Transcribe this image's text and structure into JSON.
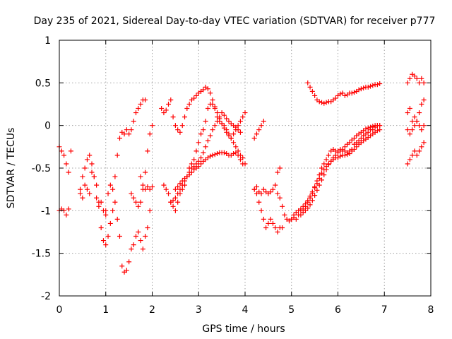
{
  "chart_data": {
    "type": "scatter",
    "title": "Day 235 of 2021, Sidereal Day-to-day VTEC variation (SDTVAR) for receiver p777",
    "xlabel": "GPS time / hours",
    "ylabel": "SDTVAR / TECUs",
    "xlim": [
      0,
      8
    ],
    "ylim": [
      -2,
      1
    ],
    "xticks": [
      0,
      1,
      2,
      3,
      4,
      5,
      6,
      7,
      8
    ],
    "xtick_labels": [
      "0",
      "1",
      "2",
      "3",
      "4",
      "5",
      "6",
      "7",
      "8"
    ],
    "yticks": [
      -2,
      -1.5,
      -1,
      -0.5,
      0,
      0.5,
      1
    ],
    "ytick_labels": [
      "-2",
      "-1.5",
      "-1",
      "-0.5",
      "0",
      "0.5",
      "1"
    ],
    "grid": true,
    "marker": "+",
    "color": "#ff0000",
    "series": [
      {
        "name": "s1",
        "x": [
          0.0,
          0.05,
          0.1,
          0.15,
          0.2,
          0.25
        ],
        "y": [
          -0.25,
          -0.3,
          -0.35,
          -0.45,
          -0.55,
          -0.3
        ]
      },
      {
        "name": "s2",
        "x": [
          0.0,
          0.05,
          0.1,
          0.15,
          0.2
        ],
        "y": [
          -1.0,
          -0.98,
          -1.0,
          -1.05,
          -0.98
        ]
      },
      {
        "name": "s3",
        "x": [
          0.45,
          0.5,
          0.55,
          0.6,
          0.65,
          0.7,
          0.75,
          0.8,
          0.85,
          0.9,
          0.95,
          1.0,
          1.05,
          1.1,
          1.15,
          1.2,
          1.25,
          1.3,
          1.35,
          1.4,
          1.45,
          1.5,
          1.55,
          1.6,
          1.65,
          1.7,
          1.75,
          1.8,
          1.85
        ],
        "y": [
          -0.75,
          -0.6,
          -0.5,
          -0.4,
          -0.35,
          -0.45,
          -0.6,
          -0.7,
          -0.9,
          -1.2,
          -1.35,
          -1.4,
          -1.3,
          -1.15,
          -1.0,
          -0.6,
          -0.35,
          -0.15,
          -0.08,
          -0.1,
          -0.05,
          -0.1,
          -0.05,
          0.05,
          0.15,
          0.2,
          0.25,
          0.3,
          0.3
        ]
      },
      {
        "name": "s4",
        "x": [
          0.45,
          0.5,
          0.55,
          0.6,
          0.65,
          0.7,
          0.75,
          0.8,
          0.85,
          0.9,
          0.95,
          1.0
        ],
        "y": [
          -0.8,
          -0.85,
          -0.7,
          -0.75,
          -0.8,
          -0.55,
          -0.6,
          -0.85,
          -0.95,
          -0.9,
          -1.0,
          -1.05
        ]
      },
      {
        "name": "s5",
        "x": [
          1.0,
          1.05,
          1.1,
          1.15,
          1.2,
          1.25,
          1.3,
          1.35,
          1.4,
          1.45,
          1.5,
          1.55,
          1.6,
          1.65,
          1.7,
          1.75,
          1.8,
          1.85,
          1.9,
          1.95
        ],
        "y": [
          -1.0,
          -0.8,
          -0.7,
          -0.75,
          -0.9,
          -1.1,
          -1.3,
          -1.65,
          -1.72,
          -1.7,
          -1.6,
          -1.45,
          -1.4,
          -1.3,
          -1.25,
          -1.35,
          -1.45,
          -1.3,
          -1.2,
          -1.0
        ]
      },
      {
        "name": "s6",
        "x": [
          1.55,
          1.6,
          1.65,
          1.7,
          1.75,
          1.8,
          1.85,
          1.9,
          1.95,
          2.0
        ],
        "y": [
          -0.8,
          -0.85,
          -0.9,
          -0.95,
          -0.9,
          -0.75,
          -0.55,
          -0.3,
          -0.1,
          0.0
        ]
      },
      {
        "name": "s7",
        "x": [
          1.75,
          1.8,
          1.85,
          1.9,
          1.95,
          2.0
        ],
        "y": [
          -0.6,
          -0.7,
          -0.75,
          -0.72,
          -0.75,
          -0.72
        ]
      },
      {
        "name": "s8",
        "x": [
          2.2,
          2.25,
          2.3,
          2.35,
          2.4,
          2.45,
          2.5,
          2.55,
          2.6,
          2.65,
          2.7,
          2.75,
          2.8,
          2.85,
          2.9,
          2.95,
          3.0,
          3.05,
          3.1,
          3.15,
          3.2,
          3.25,
          3.3,
          3.35,
          3.4,
          3.45,
          3.5,
          3.55,
          3.6,
          3.65,
          3.7,
          3.75,
          3.8,
          3.85,
          3.9,
          3.95,
          4.0
        ],
        "y": [
          0.2,
          0.15,
          0.18,
          0.25,
          0.3,
          0.1,
          0.0,
          -0.05,
          -0.08,
          0.0,
          0.1,
          0.2,
          0.25,
          0.3,
          0.32,
          0.35,
          0.38,
          0.4,
          0.42,
          0.45,
          0.43,
          0.38,
          0.3,
          0.22,
          0.15,
          0.08,
          0.02,
          -0.03,
          -0.08,
          -0.12,
          -0.15,
          -0.1,
          -0.05,
          0.0,
          0.05,
          0.1,
          0.15
        ]
      },
      {
        "name": "s9",
        "x": [
          2.25,
          2.3,
          2.35,
          2.4,
          2.45,
          2.5,
          2.55,
          2.6,
          2.65,
          2.7,
          2.75,
          2.8,
          2.85,
          2.9,
          2.95,
          3.0,
          3.05,
          3.1,
          3.15,
          3.2,
          3.25,
          3.3,
          3.35,
          3.4,
          3.45,
          3.5,
          3.55,
          3.6,
          3.65,
          3.7,
          3.75,
          3.8,
          3.85,
          3.9,
          3.95,
          4.0
        ],
        "y": [
          -0.7,
          -0.75,
          -0.8,
          -0.9,
          -0.95,
          -1.0,
          -0.9,
          -0.8,
          -0.75,
          -0.7,
          -0.6,
          -0.5,
          -0.45,
          -0.4,
          -0.3,
          -0.2,
          -0.1,
          -0.05,
          0.05,
          0.2,
          0.25,
          0.25,
          0.2,
          0.1,
          0.05,
          0.02,
          0.0,
          -0.05,
          -0.1,
          -0.15,
          -0.2,
          -0.25,
          -0.3,
          -0.35,
          -0.38,
          -0.45
        ]
      },
      {
        "name": "s10",
        "x": [
          2.4,
          2.45,
          2.5,
          2.55,
          2.6,
          2.65,
          2.7,
          2.75,
          2.8,
          2.85,
          2.9,
          2.95,
          3.0,
          3.05,
          3.1,
          3.15,
          3.2,
          3.25,
          3.3,
          3.35,
          3.4,
          3.45,
          3.5,
          3.55,
          3.6,
          3.65,
          3.7,
          3.75,
          3.8,
          3.85,
          3.9
        ],
        "y": [
          -0.9,
          -0.88,
          -0.85,
          -0.8,
          -0.75,
          -0.7,
          -0.65,
          -0.6,
          -0.55,
          -0.5,
          -0.48,
          -0.45,
          -0.42,
          -0.38,
          -0.32,
          -0.25,
          -0.18,
          -0.12,
          -0.05,
          0.0,
          0.05,
          0.1,
          0.15,
          0.12,
          0.08,
          0.05,
          0.02,
          0.0,
          -0.02,
          -0.05,
          -0.08
        ]
      },
      {
        "name": "s11",
        "x": [
          2.5,
          2.55,
          2.6,
          2.65,
          2.7,
          2.75,
          2.8,
          2.85,
          2.9,
          2.95,
          3.0,
          3.05,
          3.1,
          3.15,
          3.2,
          3.25,
          3.3,
          3.35,
          3.4,
          3.45,
          3.5,
          3.55,
          3.6,
          3.65,
          3.7,
          3.75,
          3.8,
          3.85,
          3.9,
          3.95
        ],
        "y": [
          -0.75,
          -0.72,
          -0.68,
          -0.65,
          -0.62,
          -0.6,
          -0.58,
          -0.55,
          -0.52,
          -0.5,
          -0.48,
          -0.45,
          -0.42,
          -0.4,
          -0.38,
          -0.36,
          -0.35,
          -0.34,
          -0.33,
          -0.32,
          -0.32,
          -0.32,
          -0.33,
          -0.35,
          -0.35,
          -0.33,
          -0.32,
          -0.35,
          -0.4,
          -0.45
        ]
      },
      {
        "name": "s12",
        "x": [
          4.2,
          4.25,
          4.3,
          4.35,
          4.4
        ],
        "y": [
          -0.15,
          -0.1,
          -0.05,
          0.0,
          0.05
        ]
      },
      {
        "name": "s13",
        "x": [
          4.2,
          4.25,
          4.3,
          4.35,
          4.4,
          4.45,
          4.5,
          4.55,
          4.6,
          4.65,
          4.7,
          4.75,
          4.8
        ],
        "y": [
          -0.75,
          -0.8,
          -0.9,
          -1.0,
          -1.1,
          -1.2,
          -1.15,
          -1.1,
          -1.15,
          -1.2,
          -1.25,
          -1.2,
          -1.2
        ]
      },
      {
        "name": "s14",
        "x": [
          4.2,
          4.25,
          4.3,
          4.35,
          4.4,
          4.45,
          4.5,
          4.55,
          4.6,
          4.65,
          4.7,
          4.75
        ],
        "y": [
          -0.75,
          -0.72,
          -0.78,
          -0.8,
          -0.75,
          -0.78,
          -0.8,
          -0.78,
          -0.75,
          -0.7,
          -0.55,
          -0.5
        ]
      },
      {
        "name": "s15",
        "x": [
          4.7,
          4.75,
          4.8,
          4.85,
          4.9,
          4.95,
          5.0,
          5.05,
          5.1,
          5.15,
          5.2,
          5.25,
          5.3,
          5.35,
          5.4,
          5.45,
          5.5,
          5.55,
          5.6,
          5.65,
          5.7,
          5.75,
          5.8,
          5.85,
          5.9,
          5.95,
          6.0,
          6.05,
          6.1,
          6.15,
          6.2,
          6.25,
          6.3,
          6.35,
          6.4,
          6.45,
          6.5,
          6.55,
          6.6,
          6.65,
          6.7,
          6.75,
          6.8,
          6.85,
          6.9
        ],
        "y": [
          -0.8,
          -0.85,
          -0.95,
          -1.05,
          -1.1,
          -1.12,
          -1.1,
          -1.08,
          -1.1,
          -1.05,
          -1.0,
          -0.98,
          -0.95,
          -0.9,
          -0.85,
          -0.8,
          -0.72,
          -0.65,
          -0.58,
          -0.5,
          -0.45,
          -0.4,
          -0.35,
          -0.3,
          -0.28,
          -0.3,
          -0.3,
          -0.28,
          -0.3,
          -0.3,
          -0.32,
          -0.3,
          -0.28,
          -0.22,
          -0.2,
          -0.18,
          -0.15,
          -0.12,
          -0.1,
          -0.08,
          -0.05,
          -0.05,
          -0.02,
          0.0,
          0.0
        ]
      },
      {
        "name": "s16",
        "x": [
          5.0,
          5.05,
          5.1,
          5.15,
          5.2,
          5.25,
          5.3,
          5.35,
          5.4,
          5.45,
          5.5,
          5.55,
          5.6,
          5.65,
          5.7,
          5.75,
          5.8,
          5.85,
          5.9,
          5.95,
          6.0,
          6.05,
          6.1,
          6.15,
          6.2,
          6.25,
          6.3,
          6.35,
          6.4,
          6.45,
          6.5,
          6.55,
          6.6,
          6.65,
          6.7,
          6.75,
          6.8,
          6.85,
          6.9
        ],
        "y": [
          -1.1,
          -1.05,
          -1.02,
          -1.0,
          -0.98,
          -0.95,
          -0.92,
          -0.88,
          -0.83,
          -0.78,
          -0.73,
          -0.68,
          -0.62,
          -0.56,
          -0.52,
          -0.48,
          -0.45,
          -0.42,
          -0.4,
          -0.38,
          -0.38,
          -0.36,
          -0.35,
          -0.35,
          -0.34,
          -0.33,
          -0.3,
          -0.28,
          -0.25,
          -0.22,
          -0.2,
          -0.18,
          -0.16,
          -0.14,
          -0.12,
          -0.1,
          -0.08,
          -0.06,
          -0.05
        ]
      },
      {
        "name": "s17",
        "x": [
          5.2,
          5.25,
          5.3,
          5.35,
          5.4,
          5.45,
          5.5,
          5.55,
          5.6,
          5.65,
          5.7,
          5.75,
          5.8,
          5.85,
          5.9,
          5.95,
          6.0,
          6.05,
          6.1,
          6.15,
          6.2,
          6.25,
          6.3,
          6.35,
          6.4,
          6.45,
          6.5,
          6.55,
          6.6,
          6.65,
          6.7,
          6.75,
          6.8,
          6.85,
          6.9
        ],
        "y": [
          -1.05,
          -1.02,
          -1.0,
          -0.97,
          -0.93,
          -0.88,
          -0.82,
          -0.76,
          -0.7,
          -0.64,
          -0.58,
          -0.52,
          -0.46,
          -0.42,
          -0.38,
          -0.35,
          -0.32,
          -0.3,
          -0.28,
          -0.25,
          -0.22,
          -0.2,
          -0.17,
          -0.15,
          -0.12,
          -0.1,
          -0.08,
          -0.06,
          -0.04,
          -0.03,
          -0.02,
          -0.01,
          0.0,
          0.0,
          0.0
        ]
      },
      {
        "name": "s18",
        "x": [
          5.35,
          5.4,
          5.45,
          5.5,
          5.55,
          5.6,
          5.65,
          5.7,
          5.75,
          5.8,
          5.85,
          5.9,
          5.95,
          6.0,
          6.05,
          6.1,
          6.15,
          6.2,
          6.25,
          6.3,
          6.35,
          6.4,
          6.45,
          6.5,
          6.55,
          6.6,
          6.65,
          6.7,
          6.75,
          6.8,
          6.85,
          6.9
        ],
        "y": [
          0.5,
          0.45,
          0.4,
          0.35,
          0.3,
          0.28,
          0.27,
          0.26,
          0.27,
          0.28,
          0.28,
          0.3,
          0.32,
          0.35,
          0.37,
          0.38,
          0.35,
          0.36,
          0.38,
          0.38,
          0.39,
          0.4,
          0.42,
          0.43,
          0.44,
          0.45,
          0.45,
          0.46,
          0.47,
          0.48,
          0.48,
          0.49
        ]
      },
      {
        "name": "s19",
        "x": [
          7.5,
          7.55,
          7.6,
          7.65,
          7.7,
          7.75,
          7.8,
          7.85
        ],
        "y": [
          0.5,
          0.55,
          0.6,
          0.58,
          0.55,
          0.5,
          0.55,
          0.5
        ]
      },
      {
        "name": "s20",
        "x": [
          7.5,
          7.55,
          7.6,
          7.65,
          7.7,
          7.75,
          7.8,
          7.85
        ],
        "y": [
          0.15,
          0.2,
          0.05,
          0.1,
          0.05,
          0.15,
          0.25,
          0.3
        ]
      },
      {
        "name": "s21",
        "x": [
          7.5,
          7.55,
          7.6,
          7.65,
          7.7,
          7.75,
          7.8,
          7.85
        ],
        "y": [
          -0.05,
          -0.1,
          -0.05,
          0.0,
          0.05,
          0.0,
          -0.05,
          0.0
        ]
      },
      {
        "name": "s22",
        "x": [
          7.5,
          7.55,
          7.6,
          7.65,
          7.7,
          7.75,
          7.8,
          7.85
        ],
        "y": [
          -0.45,
          -0.4,
          -0.35,
          -0.3,
          -0.35,
          -0.3,
          -0.25,
          -0.2
        ]
      }
    ]
  }
}
